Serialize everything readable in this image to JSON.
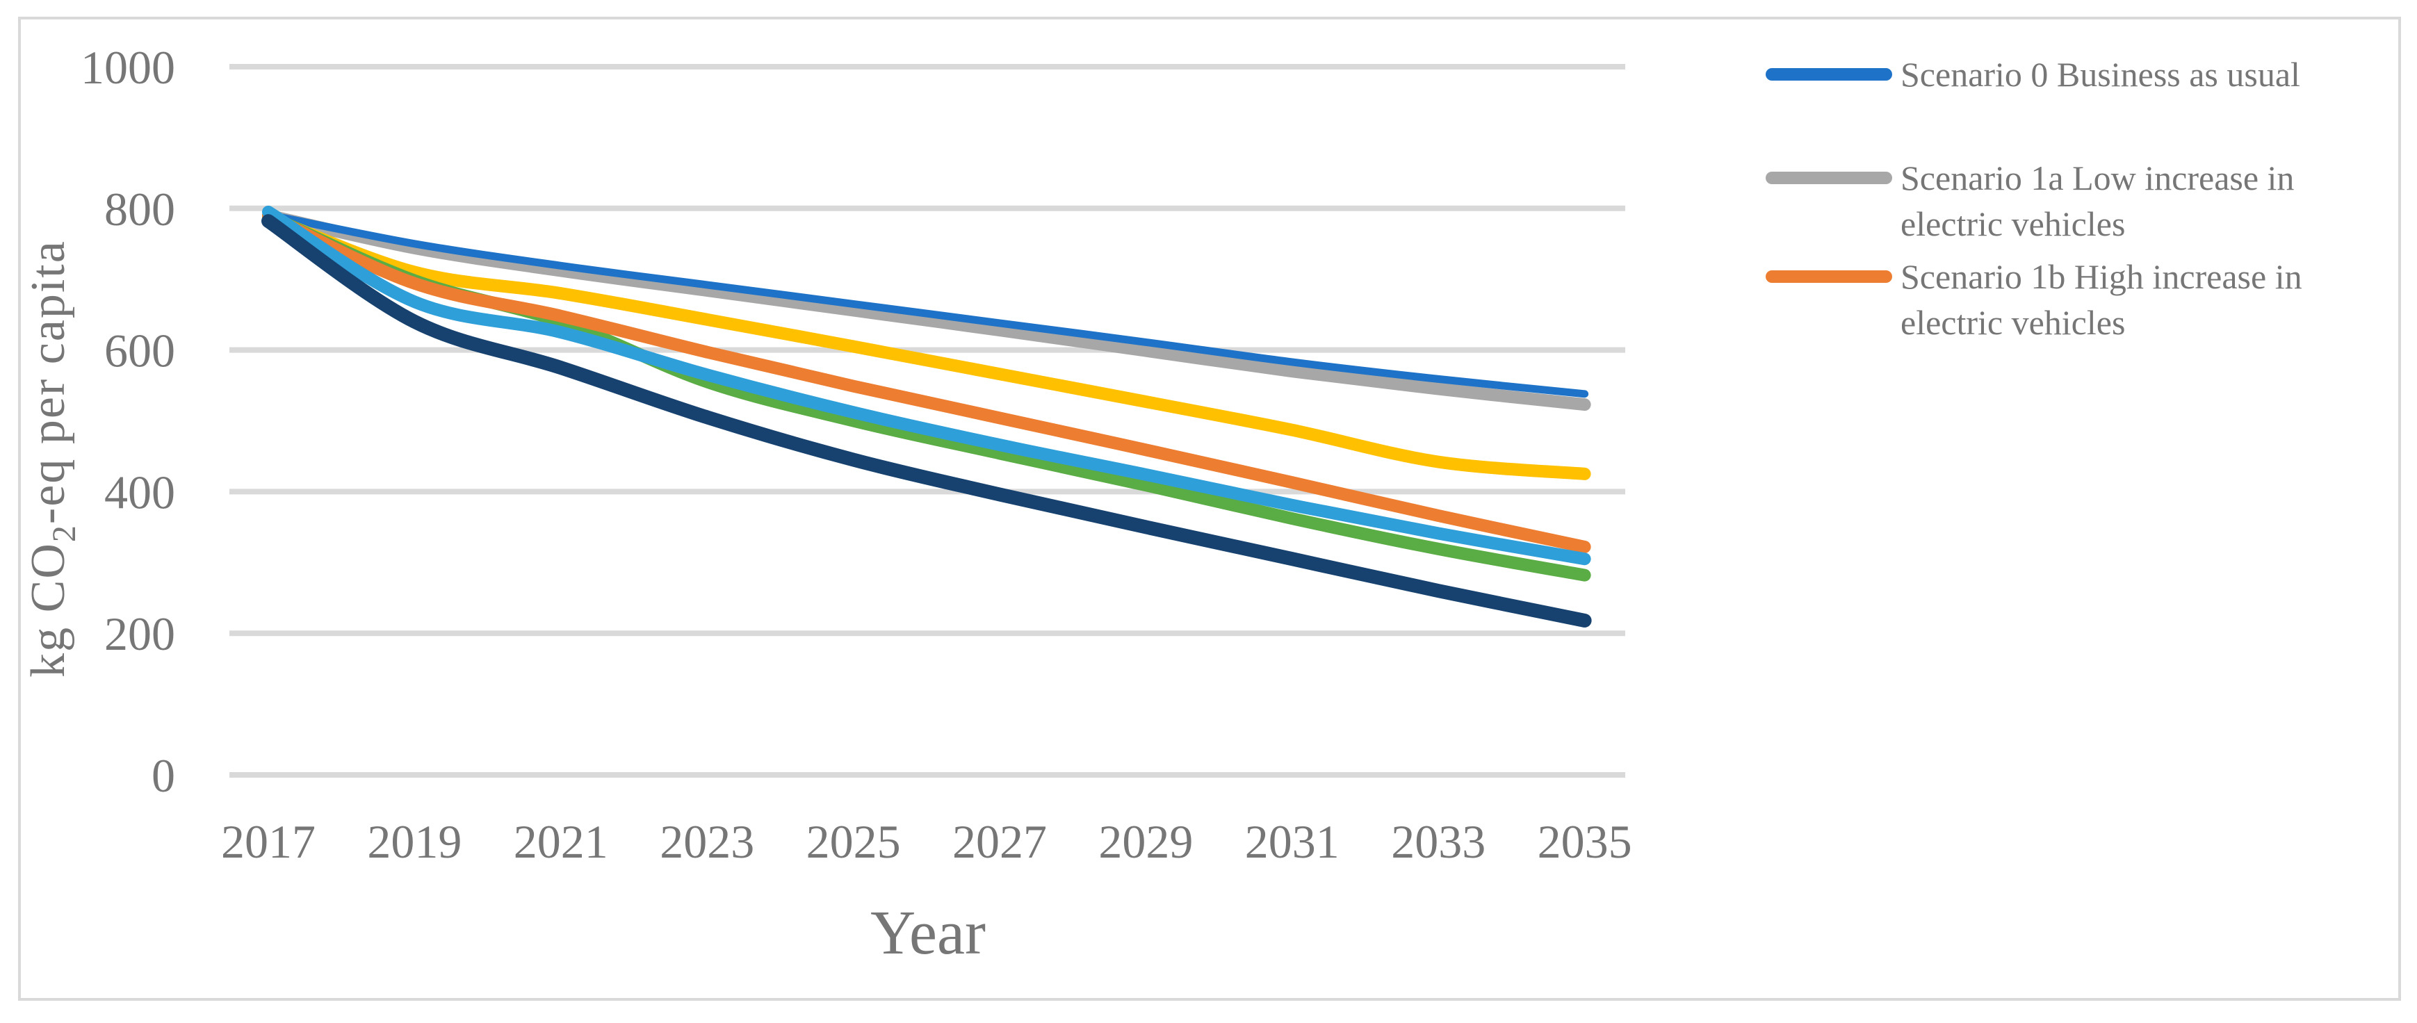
{
  "figure": {
    "background": "#FFFFFF",
    "border_color": "#D9D9D9"
  },
  "chart_data": {
    "type": "line",
    "title": "",
    "xlabel": "Year",
    "ylabel": "kg CO2-eq per capita",
    "ylabel_parts": {
      "pre": "kg CO",
      "sub": "2",
      "post": "-eq per capita"
    },
    "x": [
      2017,
      2019,
      2021,
      2023,
      2025,
      2027,
      2029,
      2031,
      2033,
      2035
    ],
    "x_tick_labels": [
      "2017",
      "2019",
      "2021",
      "2023",
      "2025",
      "2027",
      "2029",
      "2031",
      "2033",
      "2035"
    ],
    "y_ticks": [
      1000,
      800,
      600,
      400,
      200,
      0
    ],
    "ylim": [
      0,
      1000
    ],
    "xlim": [
      2017,
      2035
    ],
    "grid": "horizontal",
    "gridline_color": "#D9D9D9",
    "axis_text_color": "#767676",
    "legend_position": "right",
    "series": [
      {
        "id": "scenario-1a",
        "legend_label": "Scenario 1a Low increase in electric vehicles",
        "color": "#A7A7A7",
        "width": 18,
        "values": [
          790,
          744,
          712,
          684,
          656,
          628,
          599,
          570,
          545,
          523
        ]
      },
      {
        "id": "scenario-0",
        "legend_label": "Scenario 0 Business as usual",
        "color": "#1E73C8",
        "width": 11,
        "values": [
          791,
          750,
          719,
          692,
          665,
          638,
          611,
          583,
          559,
          538
        ]
      },
      {
        "id": "unlabeled-yellow",
        "legend_label": null,
        "color": "#FFC000",
        "width": 18,
        "values": [
          788,
          710,
          680,
          643,
          605,
          566,
          527,
          487,
          442,
          425
        ]
      },
      {
        "id": "unlabeled-green",
        "legend_label": null,
        "color": "#5AAC44",
        "width": 18,
        "values": [
          790,
          698,
          640,
          555,
          500,
          454,
          409,
          362,
          319,
          282
        ]
      },
      {
        "id": "scenario-1b",
        "legend_label": "Scenario 1b High increase in electric vehicles",
        "color": "#ED7D31",
        "width": 18,
        "values": [
          790,
          694,
          648,
          597,
          549,
          504,
          459,
          413,
          366,
          322
        ]
      },
      {
        "id": "unlabeled-lightblue",
        "legend_label": null,
        "color": "#2F9FD9",
        "width": 18,
        "values": [
          795,
          668,
          625,
          565,
          512,
          466,
          424,
          381,
          341,
          305
        ]
      },
      {
        "id": "unlabeled-navy",
        "legend_label": null,
        "color": "#17426F",
        "width": 20,
        "values": [
          782,
          640,
          575,
          505,
          445,
          396,
          350,
          305,
          260,
          218
        ]
      }
    ],
    "legend": [
      {
        "series_id": "scenario-0",
        "lines": [
          "Scenario 0 Business as usual"
        ]
      },
      {
        "series_id": "scenario-1a",
        "lines": [
          "Scenario 1a Low increase in",
          "electric vehicles"
        ]
      },
      {
        "series_id": "scenario-1b",
        "lines": [
          "Scenario 1b High increase in",
          "electric vehicles"
        ]
      }
    ]
  }
}
